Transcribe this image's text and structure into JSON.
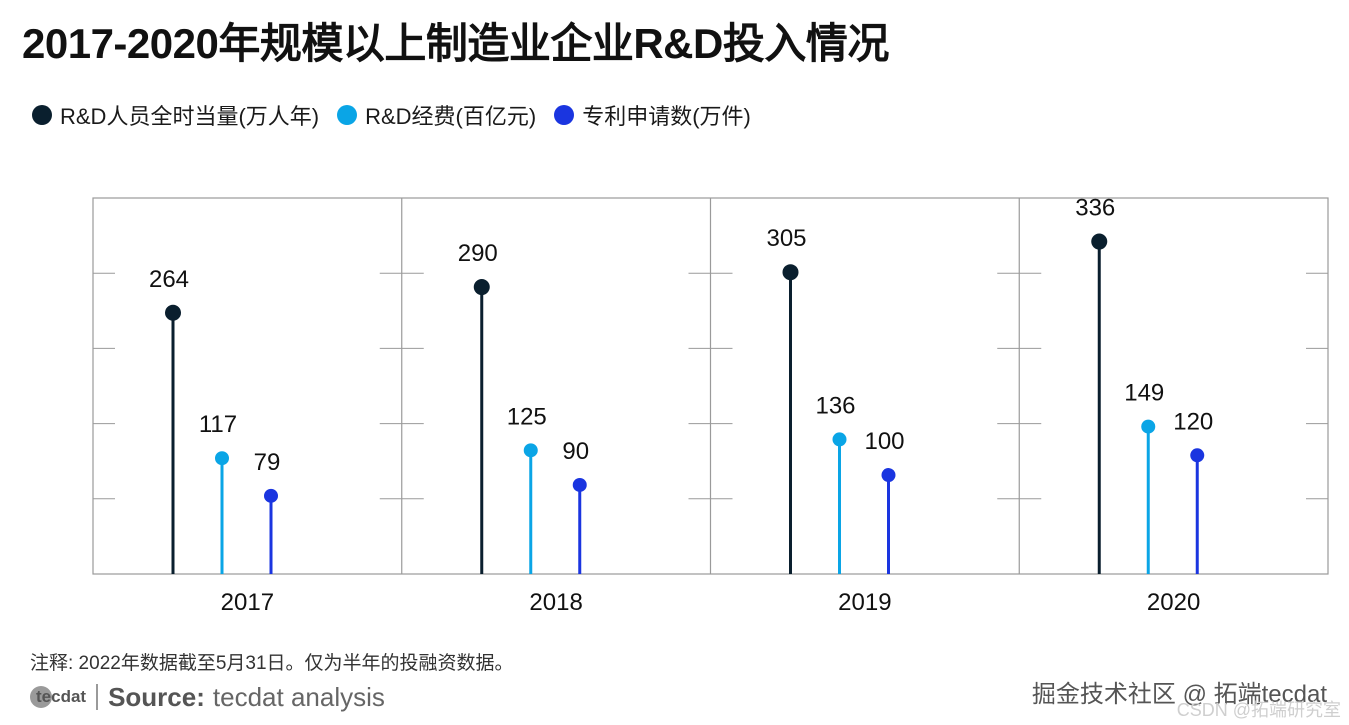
{
  "title": "2017-2020年规模以上制造业企业R&D投入情况",
  "legend": [
    {
      "label": "R&D人员全时当量(万人年)",
      "color": "#0a1f2e"
    },
    {
      "label": "R&D经费(百亿元)",
      "color": "#0aa5e6"
    },
    {
      "label": "专利申请数(万件)",
      "color": "#1a35e0"
    }
  ],
  "chart_data": {
    "type": "lollipop",
    "categories": [
      "2017",
      "2018",
      "2019",
      "2020"
    ],
    "series": [
      {
        "name": "R&D人员全时当量(万人年)",
        "color": "#0a1f2e",
        "values": [
          264,
          290,
          305,
          336
        ]
      },
      {
        "name": "R&D经费(百亿元)",
        "color": "#0aa5e6",
        "values": [
          117,
          125,
          136,
          149
        ]
      },
      {
        "name": "专利申请数(万件)",
        "color": "#1a35e0",
        "values": [
          79,
          90,
          100,
          120
        ]
      }
    ],
    "ylim": [
      0,
      380
    ],
    "grid": false,
    "legend_position": "top-left"
  },
  "note": "注释: 2022年数据截至5月31日。仅为半年的投融资数据。",
  "source": {
    "logo": "tecdat",
    "label": "Source:",
    "text": "tecdat analysis"
  },
  "watermark": "掘金技术社区 @ 拓端tecdat",
  "watermark2": "CSDN @拓端研究室"
}
